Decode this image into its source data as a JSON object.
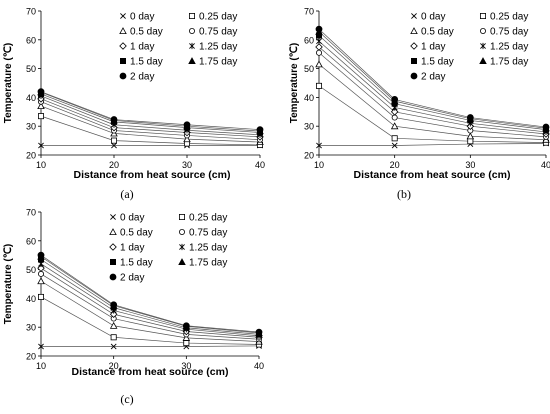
{
  "chart_data": [
    {
      "type": "line",
      "panel_label": "(a)",
      "xlabel": "Distance from heat source (cm)",
      "ylabel": "Temperature (℃)",
      "x": [
        10,
        20,
        30,
        40
      ],
      "xticks": [
        "10",
        "20",
        "30",
        "40"
      ],
      "ylim": [
        20,
        70
      ],
      "yticks": [
        "20",
        "30",
        "40",
        "50",
        "60",
        "70"
      ],
      "grid": false,
      "legend_position": "top-right",
      "series": [
        {
          "name": "0 day",
          "marker": "x",
          "values": [
            23.3,
            23.3,
            23.3,
            23.3
          ]
        },
        {
          "name": "0.25 day",
          "marker": "square-open",
          "values": [
            33.5,
            25.0,
            24.0,
            23.5
          ]
        },
        {
          "name": "0.5 day",
          "marker": "triangle-open",
          "values": [
            37.0,
            27.5,
            25.5,
            24.5
          ]
        },
        {
          "name": "0.75 day",
          "marker": "circle-open",
          "values": [
            38.5,
            28.5,
            26.8,
            25.3
          ]
        },
        {
          "name": "1 day",
          "marker": "diamond-open",
          "values": [
            39.5,
            29.5,
            27.8,
            26.3
          ]
        },
        {
          "name": "1.25 day",
          "marker": "asterisk",
          "values": [
            40.5,
            30.5,
            28.6,
            27.0
          ]
        },
        {
          "name": "1.5  day",
          "marker": "square-filled",
          "values": [
            41.2,
            31.5,
            29.5,
            27.8
          ]
        },
        {
          "name": "1.75  day",
          "marker": "triangle-filled",
          "values": [
            41.8,
            32.0,
            30.0,
            28.3
          ]
        },
        {
          "name": "2 day",
          "marker": "circle-filled",
          "values": [
            42.0,
            32.3,
            30.5,
            28.8
          ]
        }
      ]
    },
    {
      "type": "line",
      "panel_label": "(b)",
      "xlabel": "Distance from heat source (cm)",
      "ylabel": "Temperature (℃)",
      "x": [
        10,
        20,
        30,
        40
      ],
      "xticks": [
        "10",
        "20",
        "30",
        "40"
      ],
      "ylim": [
        20,
        70
      ],
      "yticks": [
        "20",
        "30",
        "40",
        "50",
        "60",
        "70"
      ],
      "grid": false,
      "legend_position": "top-right",
      "series": [
        {
          "name": "0 day",
          "marker": "x",
          "values": [
            23.3,
            23.3,
            23.8,
            24.0
          ]
        },
        {
          "name": "0.25 day",
          "marker": "square-open",
          "values": [
            44.0,
            25.8,
            24.8,
            24.3
          ]
        },
        {
          "name": "0.5 day",
          "marker": "triangle-open",
          "values": [
            51.5,
            30.0,
            26.5,
            25.3
          ]
        },
        {
          "name": "0.75 day",
          "marker": "circle-open",
          "values": [
            55.5,
            33.0,
            28.5,
            26.3
          ]
        },
        {
          "name": "1 day",
          "marker": "diamond-open",
          "values": [
            57.5,
            35.0,
            30.0,
            27.3
          ]
        },
        {
          "name": "1.25 day",
          "marker": "asterisk",
          "values": [
            59.5,
            36.5,
            31.0,
            28.0
          ]
        },
        {
          "name": "1.5  day",
          "marker": "square-filled",
          "values": [
            61.5,
            37.8,
            32.0,
            28.8
          ]
        },
        {
          "name": "1.75  day",
          "marker": "triangle-filled",
          "values": [
            62.8,
            38.7,
            32.6,
            29.3
          ]
        },
        {
          "name": "2 day",
          "marker": "circle-filled",
          "values": [
            63.7,
            39.3,
            33.0,
            29.7
          ]
        }
      ]
    },
    {
      "type": "line",
      "panel_label": "(c)",
      "xlabel": "Distance from heat source (cm)",
      "ylabel": "Temperature (℃)",
      "x": [
        10,
        20,
        30,
        40
      ],
      "xticks": [
        "10",
        "20",
        "30",
        "40"
      ],
      "ylim": [
        20,
        70
      ],
      "yticks": [
        "20",
        "30",
        "40",
        "50",
        "60",
        "70"
      ],
      "grid": false,
      "legend_position": "top-right",
      "series": [
        {
          "name": "0 day",
          "marker": "x",
          "values": [
            23.3,
            23.3,
            23.3,
            23.5
          ]
        },
        {
          "name": "0.25 day",
          "marker": "square-open",
          "values": [
            40.5,
            26.5,
            24.5,
            24.0
          ]
        },
        {
          "name": "0.5 day",
          "marker": "triangle-open",
          "values": [
            46.0,
            30.5,
            26.3,
            25.0
          ]
        },
        {
          "name": "0.75 day",
          "marker": "circle-open",
          "values": [
            48.5,
            33.0,
            27.5,
            25.8
          ]
        },
        {
          "name": "1 day",
          "marker": "diamond-open",
          "values": [
            50.5,
            34.5,
            28.5,
            26.5
          ]
        },
        {
          "name": "1.25 day",
          "marker": "asterisk",
          "values": [
            52.0,
            35.8,
            29.3,
            27.0
          ]
        },
        {
          "name": "1.5  day",
          "marker": "square-filled",
          "values": [
            53.5,
            36.8,
            29.8,
            27.5
          ]
        },
        {
          "name": "1.75  day",
          "marker": "triangle-filled",
          "values": [
            54.5,
            37.5,
            30.3,
            28.0
          ]
        },
        {
          "name": "2 day",
          "marker": "circle-filled",
          "values": [
            55.0,
            37.8,
            30.5,
            28.3
          ]
        }
      ]
    }
  ]
}
